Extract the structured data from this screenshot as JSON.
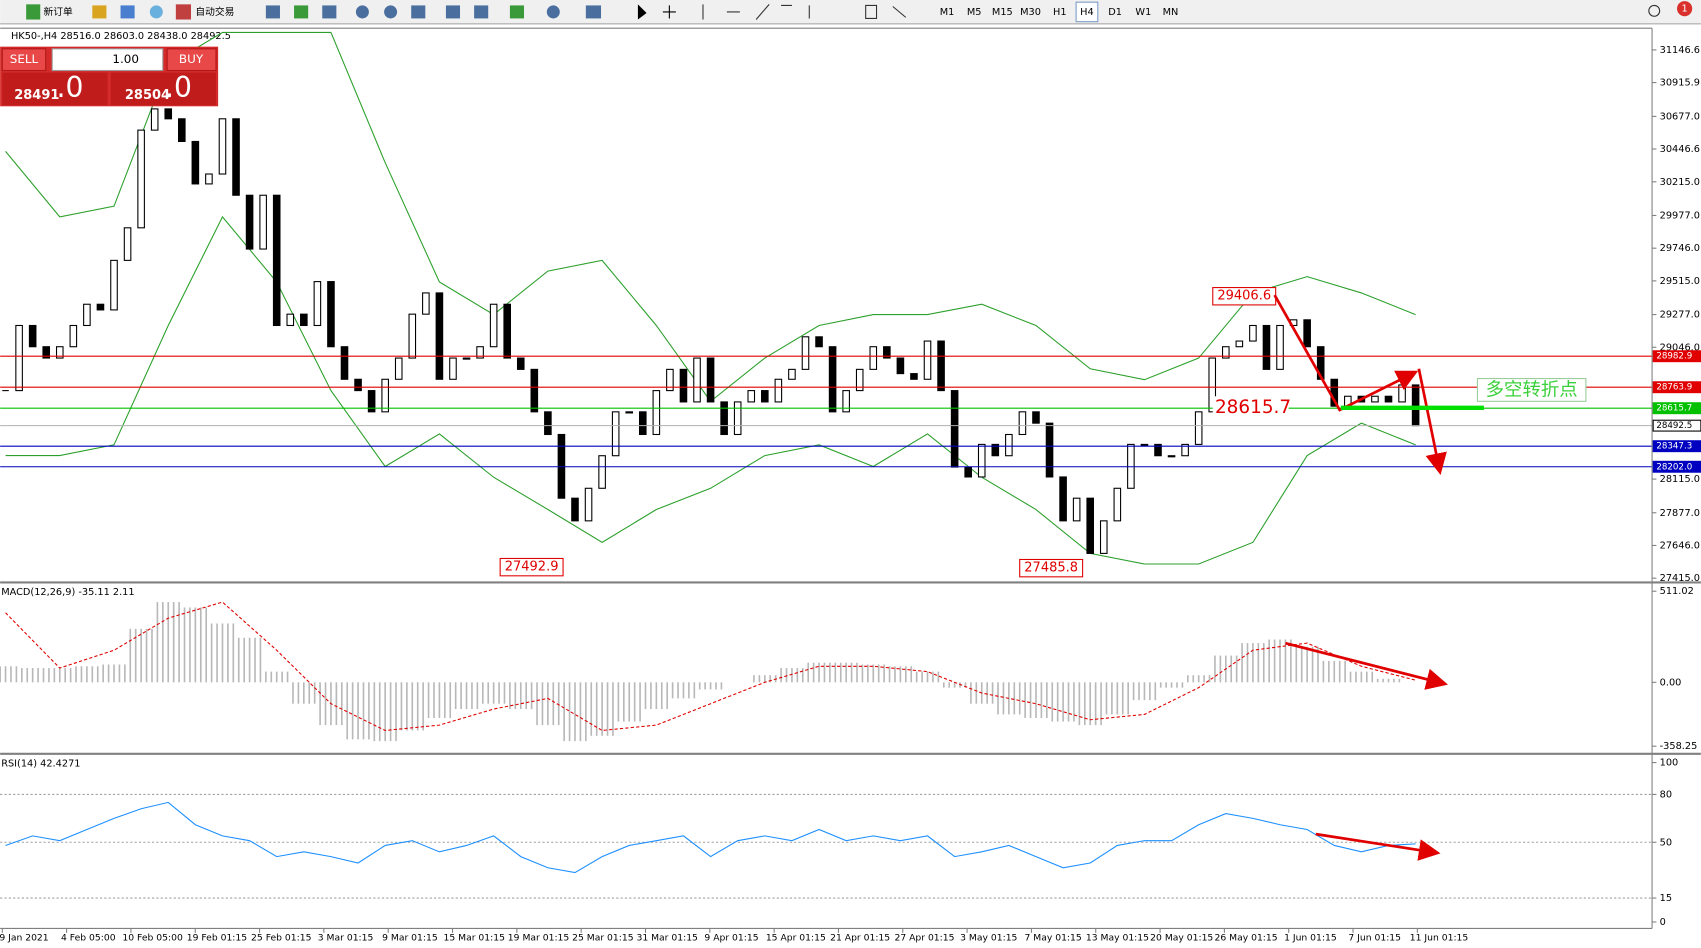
{
  "toolbar": {
    "new_order": "新订单",
    "auto_trading": "自动交易",
    "timeframes": [
      "M1",
      "M5",
      "M15",
      "M30",
      "H1",
      "H4",
      "D1",
      "W1",
      "MN"
    ],
    "active_timeframe": "H4",
    "notifications": "1"
  },
  "trade_panel": {
    "sell": "SELL",
    "buy": "BUY",
    "lot": "1.00",
    "bid_main": "28491",
    "bid_frac": ".0",
    "ask_main": "28504",
    "ask_frac": ".0"
  },
  "chart": {
    "header": "HK50-,H4 28516.0 28603.0 28438.0 28492.5",
    "ylim": [
      27400,
      31300
    ],
    "yticks": [
      {
        "value": 31146.6,
        "label": "31146.6"
      },
      {
        "value": 30915.9,
        "label": "30915.9"
      },
      {
        "value": 30677,
        "label": "30677.0"
      },
      {
        "value": 30446.6,
        "label": "30446.6"
      },
      {
        "value": 30215,
        "label": "30215.0"
      },
      {
        "value": 29977,
        "label": "29977.0"
      },
      {
        "value": 29746,
        "label": "29746.0"
      },
      {
        "value": 29515,
        "label": "29515.0"
      },
      {
        "value": 29277,
        "label": "29277.0"
      },
      {
        "value": 29046,
        "label": "29046.0"
      },
      {
        "value": 28115,
        "label": "28115.0"
      },
      {
        "value": 27877,
        "label": "27877.0"
      },
      {
        "value": 27646,
        "label": "27646.0"
      },
      {
        "value": 27415,
        "label": "27415.0"
      }
    ],
    "closes": [
      28740,
      29200,
      29050,
      28970,
      29050,
      29200,
      29350,
      29310,
      29660,
      29890,
      30580,
      30730,
      30660,
      30500,
      30200,
      30270,
      30660,
      30120,
      29740,
      30120,
      29200,
      29280,
      29200,
      29510,
      29050,
      28820,
      28740,
      28590,
      28820,
      28970,
      29280,
      29430,
      28820,
      28970,
      28970,
      29050,
      29350,
      28970,
      28890,
      28590,
      28430,
      27980,
      27820,
      28050,
      28280,
      28590,
      28590,
      28430,
      28740,
      28890,
      28660,
      28970,
      28660,
      28430,
      28660,
      28740,
      28660,
      28820,
      28890,
      29120,
      29050,
      28590,
      28740,
      28890,
      29050,
      28970,
      28860,
      28820,
      29090,
      28740,
      28200,
      28130,
      28360,
      28280,
      28430,
      28590,
      28510,
      28130,
      27820,
      27980,
      27590,
      27820,
      28050,
      28360,
      28360,
      28280,
      28280,
      28360,
      28590,
      28970,
      29050,
      29090,
      29200,
      28890,
      29200,
      29240,
      29050,
      28820,
      28630,
      28700,
      28660,
      28700,
      28660,
      28780,
      28492.5
    ],
    "candle_up_color": "#ffffff",
    "candle_down_color": "#000000",
    "band_color": "#2ca02c",
    "band_upper": [
      30430,
      29967,
      30043,
      31040,
      31270,
      31270,
      31270,
      30350,
      29507,
      29277,
      29584,
      29660,
      29200,
      28664,
      28970,
      29200,
      29277,
      29277,
      29350,
      29200,
      28894,
      28817,
      28970,
      29430,
      29545,
      29430,
      29277
    ],
    "band_lower": [
      28281,
      28281,
      28357,
      29200,
      29967,
      29507,
      28740,
      28204,
      28434,
      28128,
      27900,
      27668,
      27900,
      28050,
      28281,
      28357,
      28204,
      28434,
      28128,
      27900,
      27590,
      27515,
      27515,
      27668,
      28281,
      28510,
      28357
    ],
    "levels": [
      {
        "value": 28982.9,
        "color": "#e00000",
        "label_color": "#ffffff"
      },
      {
        "value": 28763.9,
        "color": "#e00000",
        "label_color": "#ffffff"
      },
      {
        "value": 28615.7,
        "color": "#00c000",
        "label_color": "#ffffff"
      },
      {
        "value": 28492.5,
        "color": "#b0b0b0",
        "label_color": "#000000"
      },
      {
        "value": 28347.3,
        "color": "#0000c0",
        "label_color": "#ffffff"
      },
      {
        "value": 28202,
        "label": "28202.0",
        "color": "#0000c0",
        "label_color": "#ffffff"
      }
    ],
    "annotations": [
      29406.6,
      28615.7,
      27492.9,
      27485.8
    ],
    "turn_point_label": "多空转折点"
  },
  "macd": {
    "header": "MACD(12,26,9) -35.11 2.11",
    "ylim": [
      -389,
      554
    ],
    "yticks": [
      511.02,
      {
        "value": 0,
        "label": "0.00"
      },
      -358.25
    ],
    "histogram": [
      90,
      80,
      80,
      90,
      100,
      300,
      450,
      420,
      330,
      250,
      60,
      -120,
      -240,
      -320,
      -330,
      -270,
      -200,
      -150,
      -120,
      -150,
      -240,
      -330,
      -300,
      -220,
      -150,
      -90,
      -40,
      0,
      40,
      80,
      110,
      110,
      100,
      90,
      60,
      -30,
      -120,
      -180,
      -200,
      -220,
      -240,
      -180,
      -100,
      -30,
      40,
      150,
      220,
      240,
      200,
      120,
      60,
      20,
      0
    ],
    "signal": [
      390,
      80,
      180,
      360,
      450,
      180,
      -120,
      -270,
      -240,
      -150,
      -90,
      -270,
      -240,
      -120,
      0,
      90,
      90,
      60,
      -60,
      -120,
      -210,
      -180,
      -30,
      180,
      220,
      90,
      12
    ],
    "histogram_color": "#b8b8b8",
    "signal_color": "#e00000"
  },
  "rsi": {
    "header": "RSI(14) 42.4271",
    "ylim": [
      -3.4,
      104.1
    ],
    "yticks": [
      100,
      80,
      50,
      15,
      0
    ],
    "levels": [
      80,
      50,
      15
    ],
    "values": [
      48,
      54,
      51,
      58,
      65,
      71,
      75,
      61,
      54,
      51,
      41,
      44,
      41,
      37,
      48,
      51,
      44,
      48,
      54,
      41,
      34,
      31,
      41,
      48,
      51,
      54,
      41,
      51,
      54,
      51,
      58,
      51,
      54,
      51,
      54,
      41,
      44,
      48,
      41,
      34,
      37,
      48,
      51,
      51,
      61,
      68,
      65,
      61,
      58,
      48,
      44,
      48,
      49
    ],
    "color": "#1e90ff"
  },
  "time_labels": [
    "9 Jan 2021",
    "4 Feb 05:00",
    "10 Feb 05:00",
    "19 Feb 01:15",
    "25 Feb 01:15",
    "3 Mar 01:15",
    "9 Mar 01:15",
    "15 Mar 01:15",
    "19 Mar 01:15",
    "25 Mar 01:15",
    "31 Mar 01:15",
    "9 Apr 01:15",
    "15 Apr 01:15",
    "21 Apr 01:15",
    "27 Apr 01:15",
    "3 May 01:15",
    "7 May 01:15",
    "13 May 01:15",
    "20 May 01:15",
    "26 May 01:15",
    "1 Jun 01:15",
    "7 Jun 01:15",
    "11 Jun 01:15"
  ]
}
